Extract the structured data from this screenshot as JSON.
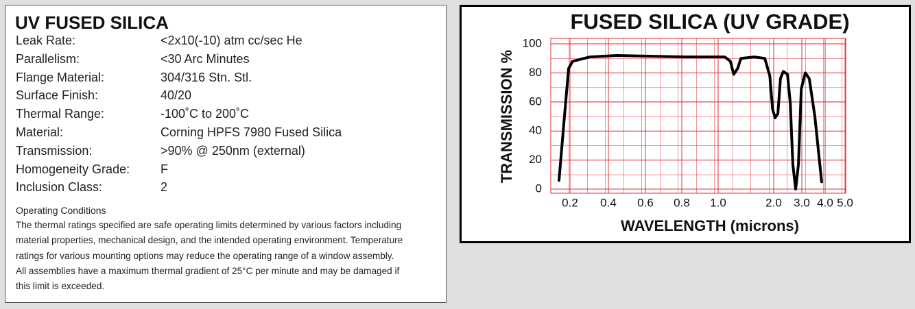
{
  "spec": {
    "title": "UV FUSED SILICA",
    "rows": [
      {
        "label": "Leak Rate:",
        "value": "<2x10(-10) atm cc/sec He"
      },
      {
        "label": "Parallelism:",
        "value": "<30 Arc Minutes"
      },
      {
        "label": "Flange Material:",
        "value": "304/316 Stn. Stl."
      },
      {
        "label": "Surface Finish:",
        "value": "40/20"
      },
      {
        "label": "Thermal Range:",
        "value": "-100˚C to 200˚C"
      },
      {
        "label": "Material:",
        "value": "Corning HPFS 7980 Fused Silica"
      },
      {
        "label": "Transmission:",
        "value": ">90% @ 250nm (external)"
      },
      {
        "label": "Homogeneity Grade:",
        "value": "F"
      },
      {
        "label": "Inclusion Class:",
        "value": "2"
      }
    ],
    "notes_title": "Operating Conditions",
    "notes": [
      "The thermal ratings specified are safe operating limits determined by various factors including",
      "material properties, mechanical design, and the intended operating environment. Temperature",
      "ratings for various mounting options may reduce the operating range of a window assembly.",
      "All assemblies have a maximum thermal gradient of 25°C per minute and may be damaged if",
      "this limit is exceeded."
    ]
  },
  "chart_data": {
    "type": "line",
    "title": "FUSED SILICA (UV GRADE)",
    "x_label": "WAVELENGTH (microns)",
    "y_label": "TRANSMISSION %",
    "x": [
      0.143,
      0.168,
      0.193,
      0.214,
      0.304,
      0.446,
      0.823,
      1.12,
      1.22,
      1.28,
      1.35,
      1.41,
      1.65,
      1.84,
      1.93,
      1.98,
      2.05,
      2.15,
      2.24,
      2.34,
      2.49,
      2.59,
      2.68,
      2.78,
      2.88,
      2.98,
      3.15,
      3.32,
      3.56,
      3.85
    ],
    "series": [
      {
        "name": "Transmission",
        "color": "#000000",
        "values": [
          6,
          45,
          83,
          88,
          91,
          92,
          91,
          91,
          88,
          79,
          83,
          90,
          91,
          90,
          78,
          55,
          49,
          52,
          76,
          81,
          79,
          59,
          17,
          0,
          17,
          69,
          80,
          76,
          50,
          5
        ]
      }
    ],
    "xlim": [
      0.1,
      5
    ],
    "xticks": [
      0.2,
      0.4,
      0.6,
      0.8,
      {
        "value": 1,
        "label": "1.0"
      },
      {
        "value": 2,
        "label": "2.0"
      },
      {
        "value": 3,
        "label": "3.0"
      },
      {
        "value": 4,
        "label": "4.0"
      },
      {
        "value": 5,
        "label": "5.0"
      }
    ],
    "ylim": [
      0,
      100
    ],
    "yticks": [
      0,
      20,
      40,
      60,
      80,
      100
    ],
    "grid": true,
    "grid_color": "#e0303a"
  }
}
